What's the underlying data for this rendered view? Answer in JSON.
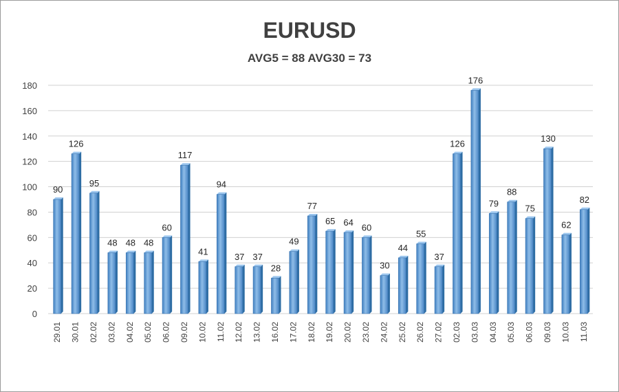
{
  "chart_data": {
    "type": "bar",
    "title": "EURUSD",
    "subtitle": "AVG5 = 88 AVG30 = 73",
    "categories": [
      "29.01",
      "30.01",
      "02.02",
      "03.02",
      "04.02",
      "05.02",
      "06.02",
      "09.02",
      "10.02",
      "11.02",
      "12.02",
      "13.02",
      "16.02",
      "17.02",
      "18.02",
      "19.02",
      "20.02",
      "23.02",
      "24.02",
      "25.02",
      "26.02",
      "27.02",
      "02.03",
      "03.03",
      "04.03",
      "05.03",
      "06.03",
      "09.03",
      "10.03",
      "11.03"
    ],
    "values": [
      90,
      126,
      95,
      48,
      48,
      48,
      60,
      117,
      41,
      94,
      37,
      37,
      28,
      49,
      77,
      65,
      64,
      60,
      30,
      44,
      55,
      37,
      126,
      176,
      79,
      88,
      75,
      130,
      62,
      82
    ],
    "ylim": [
      0,
      180
    ],
    "yticks": [
      0,
      20,
      40,
      60,
      80,
      100,
      120,
      140,
      160,
      180
    ],
    "xlabel": "",
    "ylabel": "",
    "grid": true,
    "legend": "none",
    "bar_color": "#5b9bd5",
    "bar_color_dark": "#2e6da4"
  }
}
